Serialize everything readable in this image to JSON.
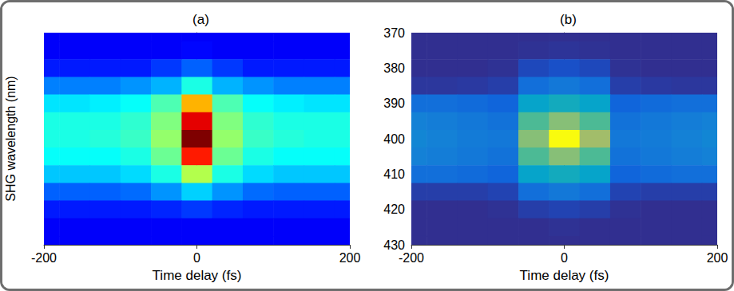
{
  "chart_data": [
    {
      "type": "heatmap",
      "title": "(a)",
      "x_label": "Time delay (fs)",
      "y_label": "SHG wavelength (nm)",
      "xlim": [
        -200,
        200
      ],
      "xticks": [
        -200,
        0,
        200
      ],
      "ylim": [
        370,
        430
      ],
      "tick_labels": "x",
      "color_range": [
        0,
        1
      ],
      "x": [
        -200,
        -160,
        -120,
        -80,
        -40,
        0,
        40,
        80,
        120,
        160,
        200
      ],
      "y": [
        370,
        375,
        380,
        385,
        390,
        395,
        400,
        405,
        410,
        415,
        420,
        425,
        430
      ],
      "values": [
        [
          0.12,
          0.12,
          0.12,
          0.12,
          0.12,
          0.12,
          0.12,
          0.12,
          0.12,
          0.12,
          0.12
        ],
        [
          0.12,
          0.12,
          0.12,
          0.12,
          0.12,
          0.13,
          0.12,
          0.12,
          0.12,
          0.12,
          0.12
        ],
        [
          0.15,
          0.15,
          0.15,
          0.15,
          0.18,
          0.22,
          0.18,
          0.15,
          0.15,
          0.15,
          0.15
        ],
        [
          0.25,
          0.25,
          0.25,
          0.27,
          0.3,
          0.4,
          0.3,
          0.27,
          0.25,
          0.25,
          0.25
        ],
        [
          0.35,
          0.35,
          0.36,
          0.38,
          0.45,
          0.7,
          0.45,
          0.38,
          0.36,
          0.35,
          0.35
        ],
        [
          0.4,
          0.4,
          0.4,
          0.42,
          0.5,
          0.9,
          0.5,
          0.42,
          0.4,
          0.4,
          0.4
        ],
        [
          0.4,
          0.4,
          0.41,
          0.43,
          0.52,
          1.0,
          0.52,
          0.43,
          0.41,
          0.4,
          0.4
        ],
        [
          0.38,
          0.38,
          0.38,
          0.4,
          0.48,
          0.85,
          0.48,
          0.4,
          0.38,
          0.38,
          0.38
        ],
        [
          0.32,
          0.32,
          0.32,
          0.34,
          0.4,
          0.55,
          0.4,
          0.34,
          0.32,
          0.32,
          0.32
        ],
        [
          0.22,
          0.22,
          0.22,
          0.23,
          0.27,
          0.33,
          0.27,
          0.23,
          0.22,
          0.22,
          0.22
        ],
        [
          0.15,
          0.15,
          0.15,
          0.15,
          0.16,
          0.18,
          0.16,
          0.15,
          0.15,
          0.15,
          0.15
        ],
        [
          0.12,
          0.12,
          0.12,
          0.12,
          0.12,
          0.12,
          0.12,
          0.12,
          0.12,
          0.12,
          0.12
        ],
        [
          0.12,
          0.12,
          0.12,
          0.12,
          0.12,
          0.12,
          0.12,
          0.12,
          0.12,
          0.12,
          0.12
        ]
      ]
    },
    {
      "type": "heatmap",
      "title": "(b)",
      "x_label": "Time delay (fs)",
      "xlim": [
        -200,
        200
      ],
      "xticks": [
        -200,
        0,
        200
      ],
      "ylim": [
        370,
        430
      ],
      "yticks": [
        370,
        380,
        390,
        400,
        410,
        420,
        430
      ],
      "color_range": [
        0,
        1
      ],
      "x": [
        -200,
        -160,
        -120,
        -80,
        -40,
        0,
        40,
        80,
        120,
        160,
        200
      ],
      "y": [
        370,
        375,
        380,
        385,
        390,
        395,
        400,
        405,
        410,
        415,
        420,
        425,
        430
      ],
      "values": [
        [
          0.02,
          0.02,
          0.02,
          0.02,
          0.02,
          0.02,
          0.02,
          0.02,
          0.02,
          0.02,
          0.02
        ],
        [
          0.02,
          0.02,
          0.02,
          0.02,
          0.03,
          0.04,
          0.03,
          0.02,
          0.02,
          0.02,
          0.02
        ],
        [
          0.02,
          0.02,
          0.02,
          0.03,
          0.12,
          0.15,
          0.12,
          0.03,
          0.02,
          0.02,
          0.02
        ],
        [
          0.05,
          0.05,
          0.06,
          0.08,
          0.3,
          0.35,
          0.3,
          0.08,
          0.06,
          0.05,
          0.05
        ],
        [
          0.3,
          0.3,
          0.28,
          0.25,
          0.55,
          0.6,
          0.55,
          0.25,
          0.28,
          0.3,
          0.3
        ],
        [
          0.4,
          0.38,
          0.35,
          0.32,
          0.75,
          0.85,
          0.75,
          0.32,
          0.35,
          0.38,
          0.4
        ],
        [
          0.42,
          0.4,
          0.37,
          0.35,
          0.85,
          1.0,
          0.88,
          0.35,
          0.37,
          0.4,
          0.42
        ],
        [
          0.4,
          0.38,
          0.35,
          0.32,
          0.75,
          0.85,
          0.75,
          0.32,
          0.35,
          0.38,
          0.4
        ],
        [
          0.3,
          0.3,
          0.28,
          0.25,
          0.55,
          0.6,
          0.55,
          0.25,
          0.28,
          0.3,
          0.3
        ],
        [
          0.08,
          0.08,
          0.08,
          0.1,
          0.3,
          0.35,
          0.3,
          0.1,
          0.08,
          0.08,
          0.08
        ],
        [
          0.02,
          0.02,
          0.02,
          0.03,
          0.08,
          0.1,
          0.08,
          0.03,
          0.02,
          0.02,
          0.02
        ],
        [
          0.02,
          0.02,
          0.02,
          0.02,
          0.02,
          0.03,
          0.02,
          0.02,
          0.02,
          0.02,
          0.02
        ],
        [
          0.02,
          0.02,
          0.02,
          0.02,
          0.02,
          0.02,
          0.02,
          0.02,
          0.02,
          0.02,
          0.02
        ]
      ]
    }
  ]
}
